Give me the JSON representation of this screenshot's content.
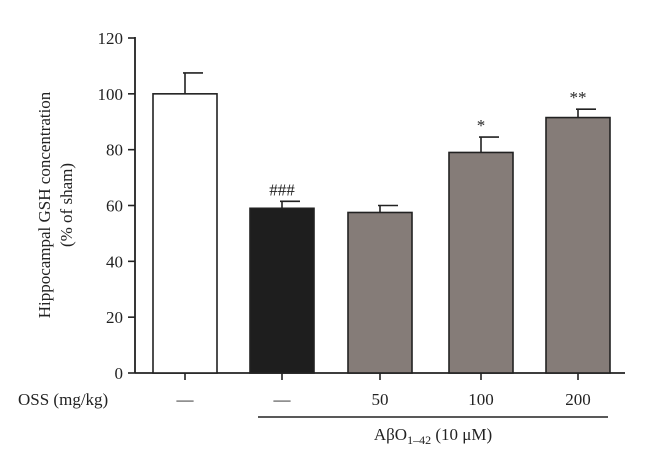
{
  "chart_data": {
    "type": "bar",
    "ylabel_line1": "Hippocampal GSH concentration",
    "ylabel_line2": "(% of sham)",
    "ylim": [
      0,
      120
    ],
    "yticks": [
      0,
      20,
      40,
      60,
      80,
      100,
      120
    ],
    "grid": false,
    "legend": "none",
    "x_row_label": "OSS (mg/kg)",
    "categories": [
      "—",
      "—",
      "50",
      "100",
      "200"
    ],
    "values": [
      100,
      59,
      57.5,
      79,
      91.5
    ],
    "errors": [
      7.5,
      2.5,
      2.5,
      5.5,
      3
    ],
    "annotations": [
      "",
      "###",
      "",
      "*",
      "**"
    ],
    "bar_colors": [
      "#ffffff",
      "#1e1e1e",
      "#857c78",
      "#857c78",
      "#857c78"
    ],
    "group_label": {
      "prefix": "Aβ",
      "main": "O",
      "subscript": "1–42",
      "suffix": " (10 μM)"
    },
    "group_label_spans": "bars 2-5"
  }
}
